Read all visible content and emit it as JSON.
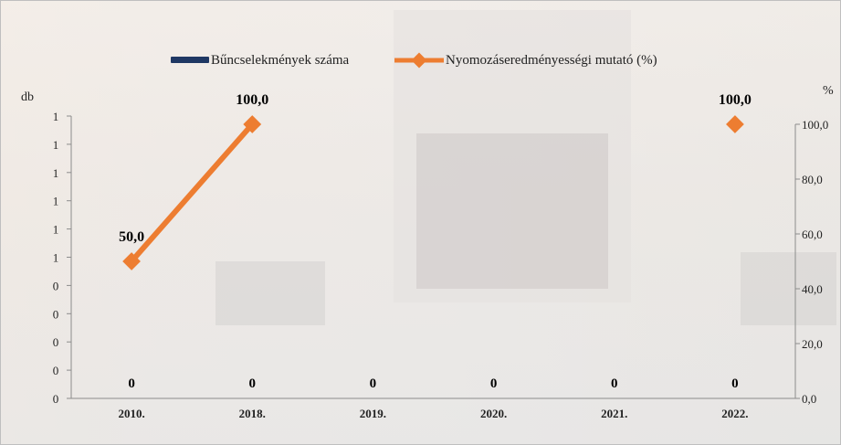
{
  "chart_data": {
    "type": "bar+line",
    "title": "",
    "categories": [
      "2010.",
      "2018.",
      "2019.",
      "2020.",
      "2021.",
      "2022."
    ],
    "series": [
      {
        "name": "Bűncselekmények száma",
        "type": "bar",
        "axis": "left",
        "values": [
          0,
          0,
          0,
          0,
          0,
          0
        ],
        "labels": [
          "0",
          "0",
          "0",
          "0",
          "0",
          "0"
        ],
        "color": "#1f3864"
      },
      {
        "name": "Nyomozáseredményességi mutató (%)",
        "type": "line",
        "axis": "right",
        "values": [
          50.0,
          100.0,
          null,
          null,
          null,
          100.0
        ],
        "labels": [
          "50,0",
          "100,0",
          "",
          "",
          "",
          "100,0"
        ],
        "color": "#ed7d31"
      }
    ],
    "left_axis": {
      "unit": "db",
      "ticks": [
        "0",
        "0",
        "0",
        "0",
        "0",
        "1",
        "1",
        "1",
        "1",
        "1",
        "1"
      ]
    },
    "right_axis": {
      "unit": "%",
      "ticks": [
        "0,0",
        "20,0",
        "40,0",
        "60,0",
        "80,0",
        "100,0"
      ],
      "range": [
        0,
        100
      ]
    },
    "legend_position": "top",
    "grid": false
  }
}
